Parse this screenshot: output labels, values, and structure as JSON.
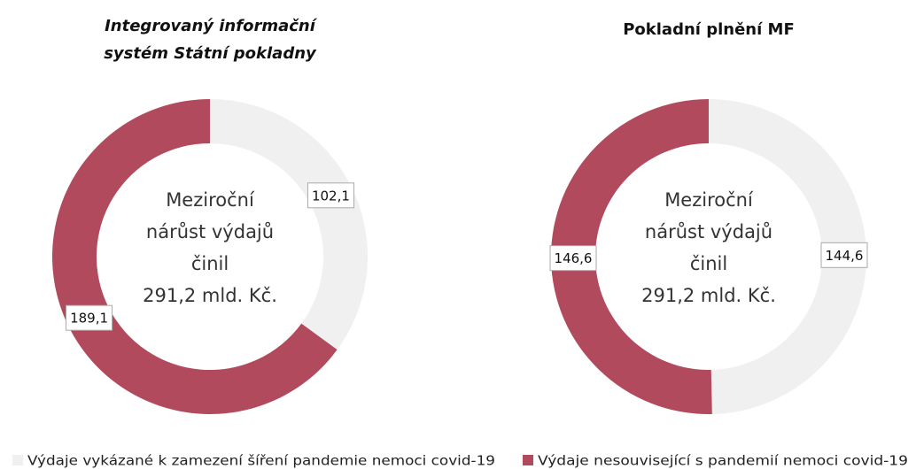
{
  "chart_data": [
    {
      "type": "donut",
      "title": [
        "Integrovaný informační",
        "systém Státní pokladny"
      ],
      "title_italic": true,
      "values": [
        102.1,
        189.1
      ],
      "value_labels": [
        "102,1",
        "189,1"
      ],
      "center_text": [
        "Meziroční",
        "nárůst výdajů",
        "činil",
        "291,2 mld. Kč."
      ]
    },
    {
      "type": "donut",
      "title": [
        "Pokladní plnění MF"
      ],
      "title_italic": false,
      "values": [
        144.6,
        146.6
      ],
      "value_labels": [
        "144,6",
        "146,6"
      ],
      "center_text": [
        "Meziroční",
        "nárůst výdajů",
        "činil",
        "291,2 mld. Kč."
      ]
    }
  ],
  "legend": [
    {
      "name": "Výdaje vykázané k zamezení šíření pandemie nemoci covid-19",
      "color": "#f0f0f0"
    },
    {
      "name": "Výdaje nesouvisející s pandemií nemoci covid-19",
      "color": "#b24a5e"
    }
  ]
}
